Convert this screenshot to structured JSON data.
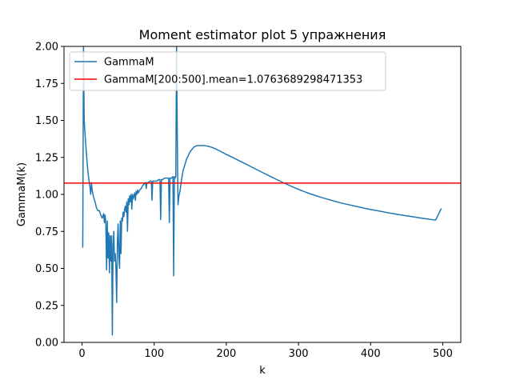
{
  "chart_data": {
    "type": "line",
    "title": "Moment estimator plot 5 упражнения",
    "xlabel": "k",
    "ylabel": "GammaM(k)",
    "xlim": [
      -25,
      525
    ],
    "ylim": [
      0.0,
      2.0
    ],
    "xticks": [
      0,
      100,
      200,
      300,
      400,
      500
    ],
    "xtick_labels": [
      "0",
      "100",
      "200",
      "300",
      "400",
      "500"
    ],
    "yticks": [
      0.0,
      0.25,
      0.5,
      0.75,
      1.0,
      1.25,
      1.5,
      1.75,
      2.0
    ],
    "ytick_labels": [
      "0.00",
      "0.25",
      "0.50",
      "0.75",
      "1.00",
      "1.25",
      "1.50",
      "1.75",
      "2.00"
    ],
    "grid": false,
    "legend_position": "upper-left",
    "series": [
      {
        "name": "GammaM",
        "color": "#1f77b4",
        "x": [
          1,
          2,
          3,
          4,
          5,
          6,
          7,
          8,
          9,
          10,
          11,
          12,
          13,
          14,
          16,
          18,
          20,
          22,
          24,
          26,
          28,
          30,
          31,
          32,
          33,
          34,
          35,
          36,
          37,
          38,
          39,
          40,
          41,
          42,
          43,
          44,
          45,
          46,
          47,
          48,
          49,
          50,
          51,
          52,
          53,
          54,
          55,
          56,
          57,
          58,
          59,
          60,
          61,
          62,
          63,
          64,
          65,
          66,
          67,
          68,
          69,
          70,
          71,
          72,
          73,
          74,
          75,
          76,
          77,
          78,
          80,
          82,
          84,
          86,
          88,
          89,
          90,
          92,
          94,
          96,
          97,
          98,
          100,
          102,
          104,
          106,
          108,
          109,
          110,
          112,
          114,
          116,
          118,
          120,
          121,
          122,
          124,
          126,
          127,
          128,
          129,
          130,
          131,
          132,
          133,
          134,
          136,
          138,
          140,
          145,
          150,
          155,
          160,
          165,
          170,
          175,
          180,
          185,
          190,
          200,
          210,
          220,
          230,
          240,
          250,
          260,
          270,
          280,
          290,
          300,
          310,
          320,
          330,
          340,
          350,
          360,
          370,
          380,
          390,
          400,
          410,
          420,
          430,
          440,
          450,
          460,
          470,
          480,
          490,
          498
        ],
        "y": [
          0.64,
          2.0,
          1.5,
          1.42,
          1.35,
          1.28,
          1.22,
          1.16,
          1.12,
          1.08,
          1.05,
          1.0,
          1.08,
          1.03,
          0.98,
          0.95,
          0.91,
          0.89,
          0.89,
          0.86,
          0.84,
          0.87,
          0.81,
          0.86,
          0.8,
          0.49,
          0.82,
          0.57,
          0.74,
          0.47,
          0.72,
          0.55,
          0.72,
          0.05,
          0.65,
          0.75,
          0.55,
          0.6,
          0.5,
          0.27,
          0.68,
          0.8,
          0.58,
          0.5,
          0.82,
          0.6,
          0.84,
          0.82,
          0.88,
          0.85,
          0.9,
          0.92,
          0.88,
          0.95,
          0.75,
          0.97,
          0.93,
          0.99,
          0.95,
          1.0,
          0.9,
          1.0,
          0.97,
          0.99,
          1.01,
          0.96,
          1.02,
          1.0,
          1.03,
          1.01,
          1.03,
          1.04,
          1.06,
          1.07,
          1.08,
          1.04,
          1.08,
          1.08,
          1.09,
          1.09,
          0.96,
          1.09,
          1.09,
          1.09,
          1.09,
          1.1,
          1.1,
          0.83,
          1.1,
          1.1,
          1.11,
          1.11,
          1.11,
          1.11,
          0.81,
          1.11,
          1.11,
          1.12,
          0.45,
          1.12,
          1.11,
          1.12,
          2.0,
          1.4,
          0.93,
          0.98,
          1.03,
          1.1,
          1.16,
          1.24,
          1.29,
          1.32,
          1.33,
          1.33,
          1.33,
          1.325,
          1.318,
          1.308,
          1.296,
          1.27,
          1.247,
          1.222,
          1.198,
          1.173,
          1.148,
          1.124,
          1.1,
          1.077,
          1.055,
          1.034,
          1.015,
          0.998,
          0.982,
          0.968,
          0.954,
          0.941,
          0.93,
          0.919,
          0.908,
          0.898,
          0.889,
          0.88,
          0.871,
          0.863,
          0.855,
          0.848,
          0.84,
          0.833,
          0.826,
          0.905
        ]
      },
      {
        "name": "GammaM[200:500].mean=1.0763689298471353",
        "color": "#ff0000",
        "type": "hline",
        "y": 1.0763689298471353
      }
    ]
  }
}
